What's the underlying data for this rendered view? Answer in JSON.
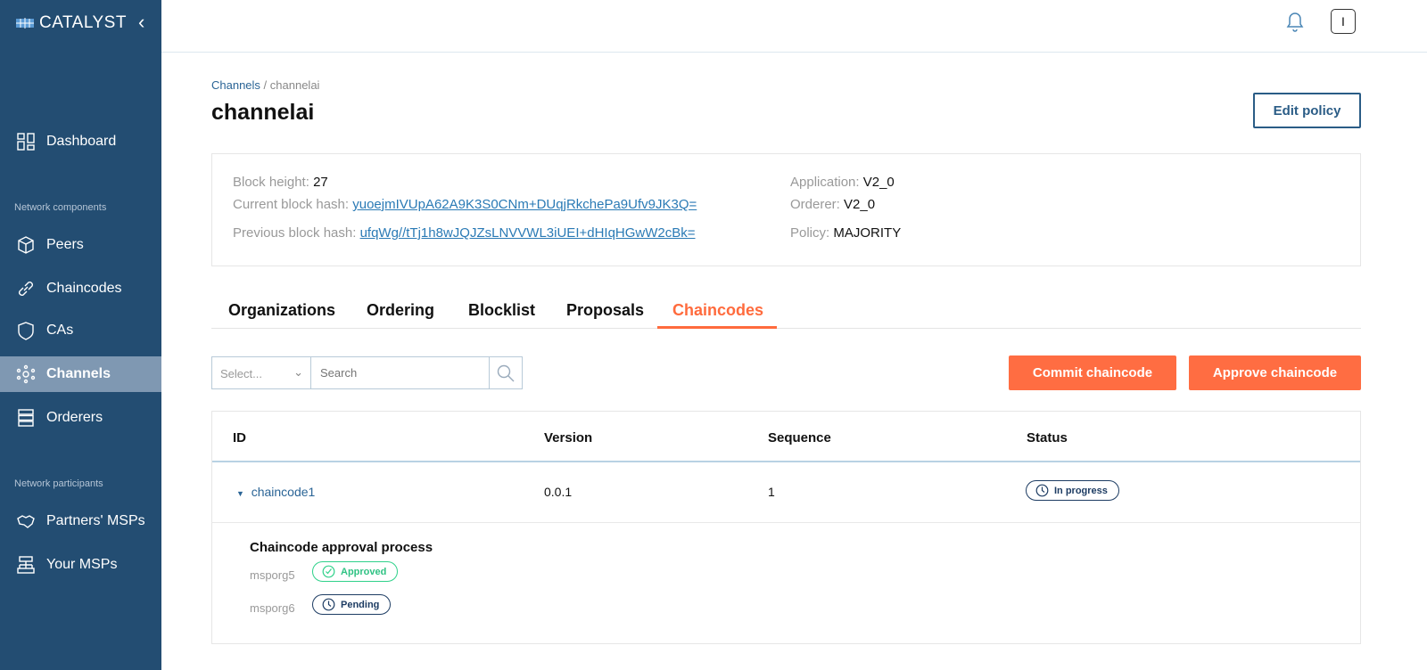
{
  "app": {
    "name": "CATALYST"
  },
  "sidebar": {
    "items": [
      {
        "label": "Dashboard",
        "icon": "dashboard-icon"
      }
    ],
    "section1": "Network components",
    "components": [
      {
        "label": "Peers",
        "icon": "cube-icon"
      },
      {
        "label": "Chaincodes",
        "icon": "link-icon"
      },
      {
        "label": "CAs",
        "icon": "shield-icon"
      },
      {
        "label": "Channels",
        "icon": "network-icon",
        "active": true
      },
      {
        "label": "Orderers",
        "icon": "server-icon"
      }
    ],
    "section2": "Network participants",
    "participants": [
      {
        "label": "Partners' MSPs",
        "icon": "handshake-icon"
      },
      {
        "label": "Your MSPs",
        "icon": "hierarchy-icon"
      }
    ]
  },
  "header": {
    "user_initial": "I"
  },
  "breadcrumb": {
    "parent": "Channels",
    "sep": " / ",
    "current": "channelai"
  },
  "page": {
    "title": "channelai",
    "edit_label": "Edit policy"
  },
  "info": {
    "block_height_label": "Block height:",
    "block_height": "27",
    "current_hash_label": "Current block hash:",
    "current_hash": "yuoejmIVUpA62A9K3S0CNm+DUqjRkchePa9Ufv9JK3Q=",
    "previous_hash_label": "Previous block hash:",
    "previous_hash": "ufqWg//tTj1h8wJQJZsLNVVWL3iUEI+dHIqHGwW2cBk=",
    "application_label": "Application:",
    "application": "V2_0",
    "orderer_label": "Orderer:",
    "orderer": "V2_0",
    "policy_label": "Policy:",
    "policy": "MAJORITY"
  },
  "tabs": [
    "Organizations",
    "Ordering",
    "Blocklist",
    "Proposals",
    "Chaincodes"
  ],
  "active_tab": "Chaincodes",
  "filters": {
    "select_placeholder": "Select...",
    "search_placeholder": "Search"
  },
  "actions": {
    "commit": "Commit chaincode",
    "approve": "Approve chaincode"
  },
  "colors": {
    "sidebar": "#234d72",
    "accent": "#ff6d42",
    "approved": "#2fd18a",
    "pending": "#1d3c63"
  },
  "table": {
    "columns": [
      "ID",
      "Version",
      "Sequence",
      "Status"
    ],
    "rows": [
      {
        "id": "chaincode1",
        "version": "0.0.1",
        "sequence": "1",
        "status": "In progress",
        "approval": {
          "title": "Chaincode approval process",
          "orgs": [
            {
              "name": "msporg5",
              "status": "Approved"
            },
            {
              "name": "msporg6",
              "status": "Pending"
            }
          ]
        }
      }
    ]
  }
}
